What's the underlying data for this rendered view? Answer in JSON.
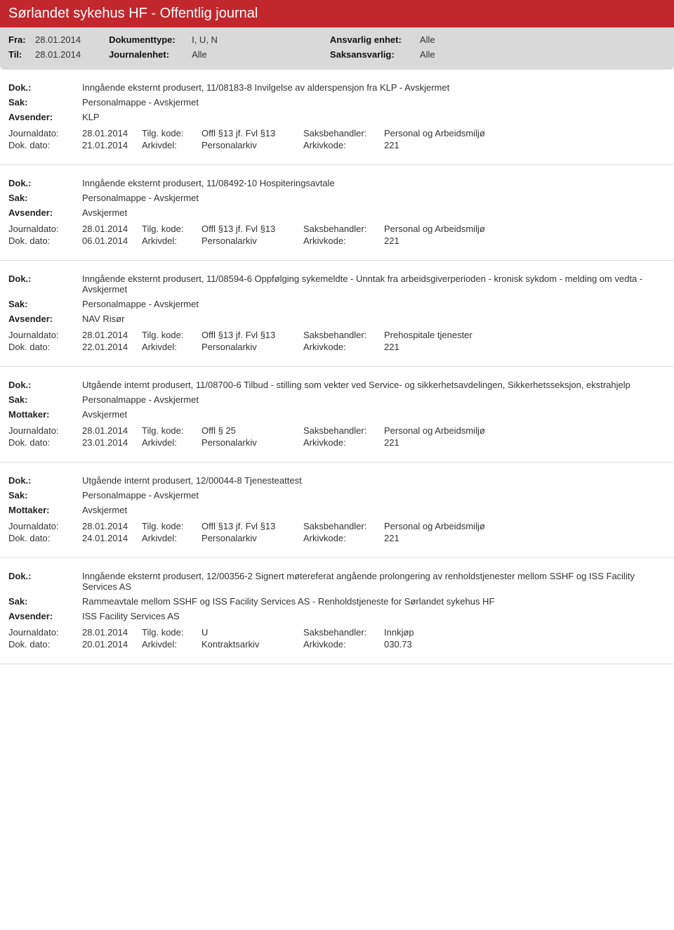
{
  "header": {
    "title": "Sørlandet sykehus HF - Offentlig journal"
  },
  "filter": {
    "fra_label": "Fra:",
    "fra": "28.01.2014",
    "til_label": "Til:",
    "til": "28.01.2014",
    "doktype_label": "Dokumenttype:",
    "doktype": "I, U, N",
    "journalenhet_label": "Journalenhet:",
    "journalenhet": "Alle",
    "ansvarlig_label": "Ansvarlig enhet:",
    "ansvarlig": "Alle",
    "saksansvarlig_label": "Saksansvarlig:",
    "saksansvarlig": "Alle"
  },
  "labels": {
    "dok": "Dok.:",
    "sak": "Sak:",
    "avsender": "Avsender:",
    "mottaker": "Mottaker:",
    "journaldato": "Journaldato:",
    "dokdato": "Dok. dato:",
    "tilgkode": "Tilg. kode:",
    "arkivdel": "Arkivdel:",
    "saksbehandler": "Saksbehandler:",
    "arkivkode": "Arkivkode:"
  },
  "entries": [
    {
      "dok": "Inngående eksternt produsert, 11/08183-8 Invilgelse av alderspensjon fra KLP - Avskjermet",
      "sak": "Personalmappe - Avskjermet",
      "party_label": "Avsender:",
      "party": "KLP",
      "journaldato": "28.01.2014",
      "tilgkode": "Offl §13 jf. Fvl §13",
      "saksbehandler": "Personal og Arbeidsmiljø",
      "dokdato": "21.01.2014",
      "arkivdel": "Personalarkiv",
      "arkivkode": "221"
    },
    {
      "dok": "Inngående eksternt produsert, 11/08492-10 Hospiteringsavtale",
      "sak": "Personalmappe - Avskjermet",
      "party_label": "Avsender:",
      "party": "Avskjermet",
      "journaldato": "28.01.2014",
      "tilgkode": "Offl §13 jf. Fvl §13",
      "saksbehandler": "Personal og Arbeidsmiljø",
      "dokdato": "06.01.2014",
      "arkivdel": "Personalarkiv",
      "arkivkode": "221"
    },
    {
      "dok": "Inngående eksternt produsert, 11/08594-6 Oppfølging sykemeldte - Unntak fra arbeidsgiverperioden - kronisk sykdom - melding om vedta - Avskjermet",
      "sak": "Personalmappe - Avskjermet",
      "party_label": "Avsender:",
      "party": "NAV Risør",
      "journaldato": "28.01.2014",
      "tilgkode": "Offl §13 jf. Fvl §13",
      "saksbehandler": "Prehospitale tjenester",
      "dokdato": "22.01.2014",
      "arkivdel": "Personalarkiv",
      "arkivkode": "221"
    },
    {
      "dok": "Utgående internt produsert, 11/08700-6 Tilbud - stilling som vekter ved Service- og sikkerhetsavdelingen, Sikkerhetsseksjon, ekstrahjelp",
      "sak": "Personalmappe - Avskjermet",
      "party_label": "Mottaker:",
      "party": "Avskjermet",
      "journaldato": "28.01.2014",
      "tilgkode": "Offl § 25",
      "saksbehandler": "Personal og Arbeidsmiljø",
      "dokdato": "23.01.2014",
      "arkivdel": "Personalarkiv",
      "arkivkode": "221"
    },
    {
      "dok": "Utgående internt produsert, 12/00044-8 Tjenesteattest",
      "sak": "Personalmappe - Avskjermet",
      "party_label": "Mottaker:",
      "party": "Avskjermet",
      "journaldato": "28.01.2014",
      "tilgkode": "Offl §13 jf. Fvl §13",
      "saksbehandler": "Personal og Arbeidsmiljø",
      "dokdato": "24.01.2014",
      "arkivdel": "Personalarkiv",
      "arkivkode": "221"
    },
    {
      "dok": "Inngående eksternt produsert, 12/00356-2 Signert møtereferat angående prolongering av renholdstjenester mellom SSHF og ISS Facility Services AS",
      "sak": "Rammeavtale mellom SSHF og ISS Facility Services AS - Renholdstjeneste for Sørlandet sykehus HF",
      "party_label": "Avsender:",
      "party": "ISS Facility Services AS",
      "journaldato": "28.01.2014",
      "tilgkode": "U",
      "saksbehandler": "Innkjøp",
      "dokdato": "20.01.2014",
      "arkivdel": "Kontraktsarkiv",
      "arkivkode": "030.73"
    }
  ]
}
